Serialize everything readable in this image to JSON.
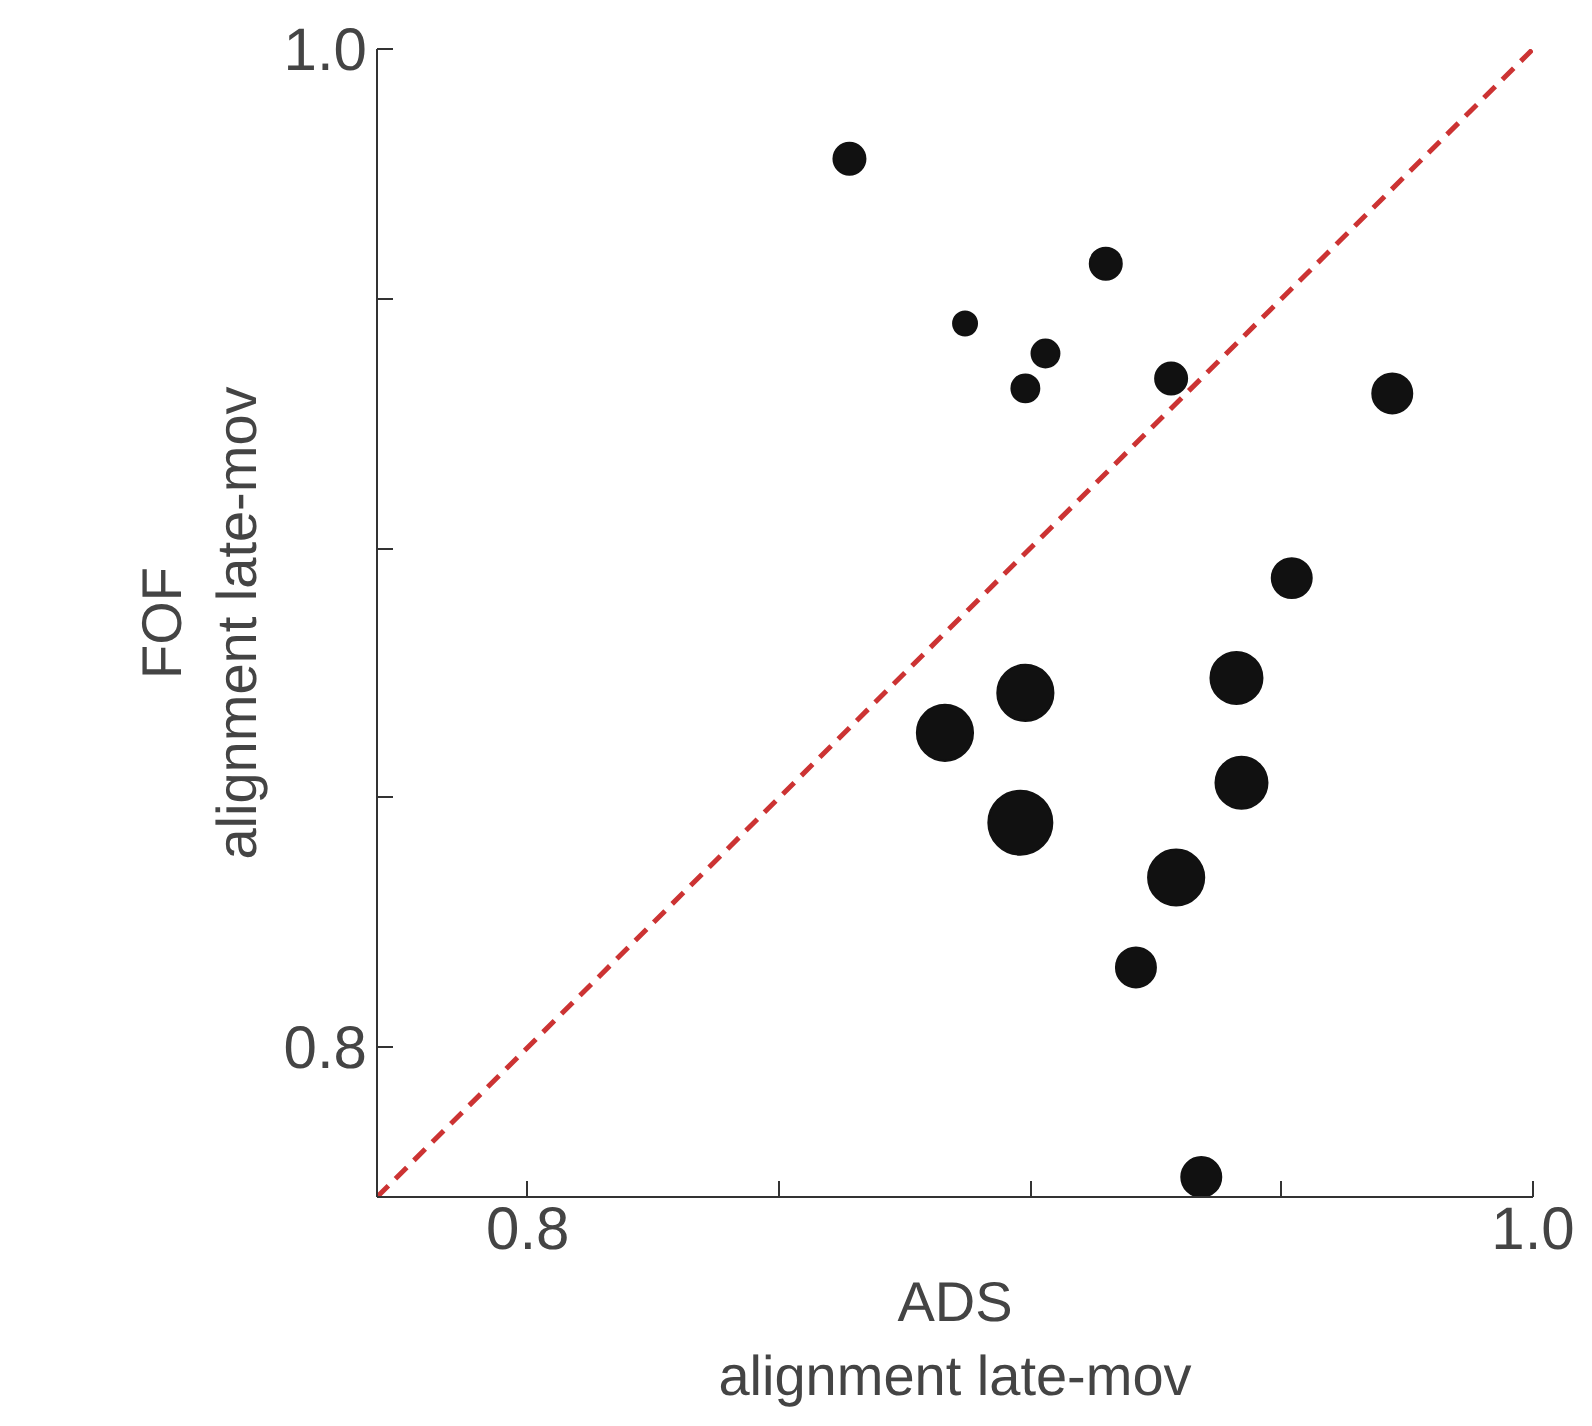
{
  "chart_data": {
    "type": "bubble",
    "xlabel": "ADS\nalignment late-mov",
    "ylabel": "FOF\nalignment late-mov",
    "xlim": [
      0.77,
      1.0
    ],
    "ylim": [
      0.77,
      1.0
    ],
    "xticks": [
      0.8,
      {
        "value": 0.85,
        "label": null
      },
      {
        "value": 0.9,
        "label": null
      },
      {
        "value": 0.95,
        "label": null
      },
      {
        "value": 1.0,
        "label": "1.0"
      }
    ],
    "yticks": [
      0.8,
      {
        "value": 0.85,
        "label": null
      },
      {
        "value": 0.9,
        "label": null
      },
      {
        "value": 0.95,
        "label": null
      },
      {
        "value": 1.0,
        "label": "1.0"
      }
    ],
    "grid": false,
    "series": [
      {
        "color": "#111111",
        "x": [
          0.864,
          0.887,
          0.903,
          0.899,
          0.915,
          0.928,
          0.972,
          0.952,
          0.941,
          0.899,
          0.883,
          0.942,
          0.898,
          0.929,
          0.921,
          0.934
        ],
        "values": [
          0.978,
          0.945,
          0.939,
          0.932,
          0.957,
          0.934,
          0.931,
          0.894,
          0.874,
          0.871,
          0.863,
          0.853,
          0.845,
          0.834,
          0.816,
          0.774
        ],
        "sizes": [
          0.25,
          0.14,
          0.19,
          0.19,
          0.25,
          0.25,
          0.39,
          0.39,
          0.66,
          0.77,
          0.77,
          0.66,
          1,
          0.77,
          0.39,
          0.39
        ]
      },
      {
        "type": "line",
        "color": "#cc3333",
        "line_style": "dashed",
        "x": [
          0.77,
          1.0
        ],
        "values": [
          0.77,
          1.0
        ]
      }
    ]
  }
}
